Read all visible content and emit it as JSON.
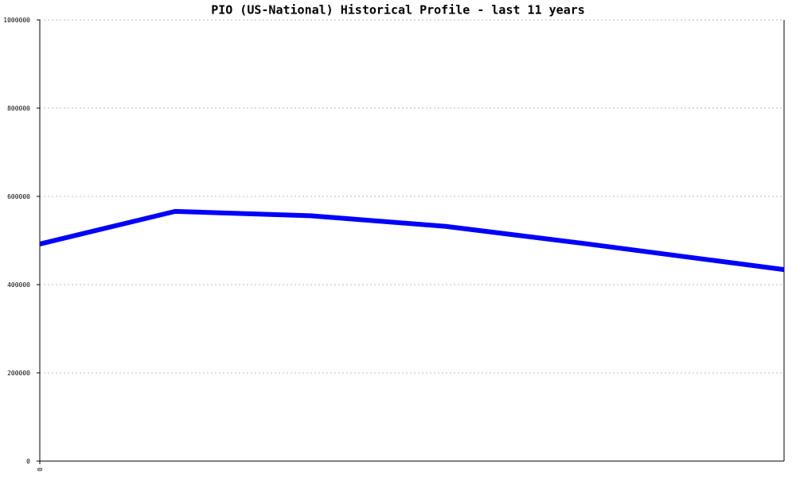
{
  "chart_data": {
    "type": "line",
    "title": "PIO (US-National) Historical Profile - last 11 years",
    "x": [
      0,
      2,
      4,
      6,
      8,
      10,
      11
    ],
    "series": [
      {
        "color": "#0000ff",
        "values": [
          492000,
          566000,
          556000,
          532000,
          494000,
          454000,
          434000
        ]
      }
    ],
    "xlim": [
      0,
      11
    ],
    "xticks": [
      0
    ],
    "ylim": [
      0,
      1000000
    ],
    "yticks": [
      0,
      200000,
      400000,
      600000,
      800000,
      1000000
    ],
    "grid": true
  }
}
